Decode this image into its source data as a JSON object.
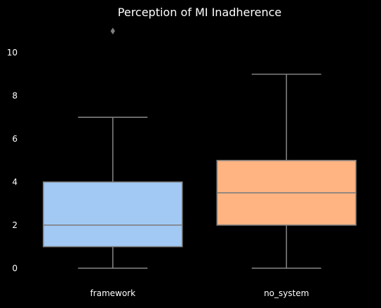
{
  "chart_data": {
    "type": "box",
    "title": "Perception of MI Inadherence",
    "xlabel": "",
    "ylabel": "",
    "categories": [
      "framework",
      "no_system"
    ],
    "ylim": [
      -0.25,
      11.4
    ],
    "yticks": [
      0,
      2,
      4,
      6,
      8,
      10
    ],
    "grid": false,
    "legend": "none",
    "series": [
      {
        "category": "framework",
        "color": "#a1c9f4",
        "whisker_low": 0,
        "q1": 1,
        "median": 2,
        "q3": 4,
        "whisker_high": 7,
        "outliers": [
          11
        ]
      },
      {
        "category": "no_system",
        "color": "#ffb482",
        "whisker_low": 0,
        "q1": 2,
        "median": 3.5,
        "q3": 5,
        "whisker_high": 9,
        "outliers": []
      }
    ],
    "colors": {
      "background": "#000000",
      "text": "#ffffff",
      "line": "#7f7f7f"
    }
  }
}
